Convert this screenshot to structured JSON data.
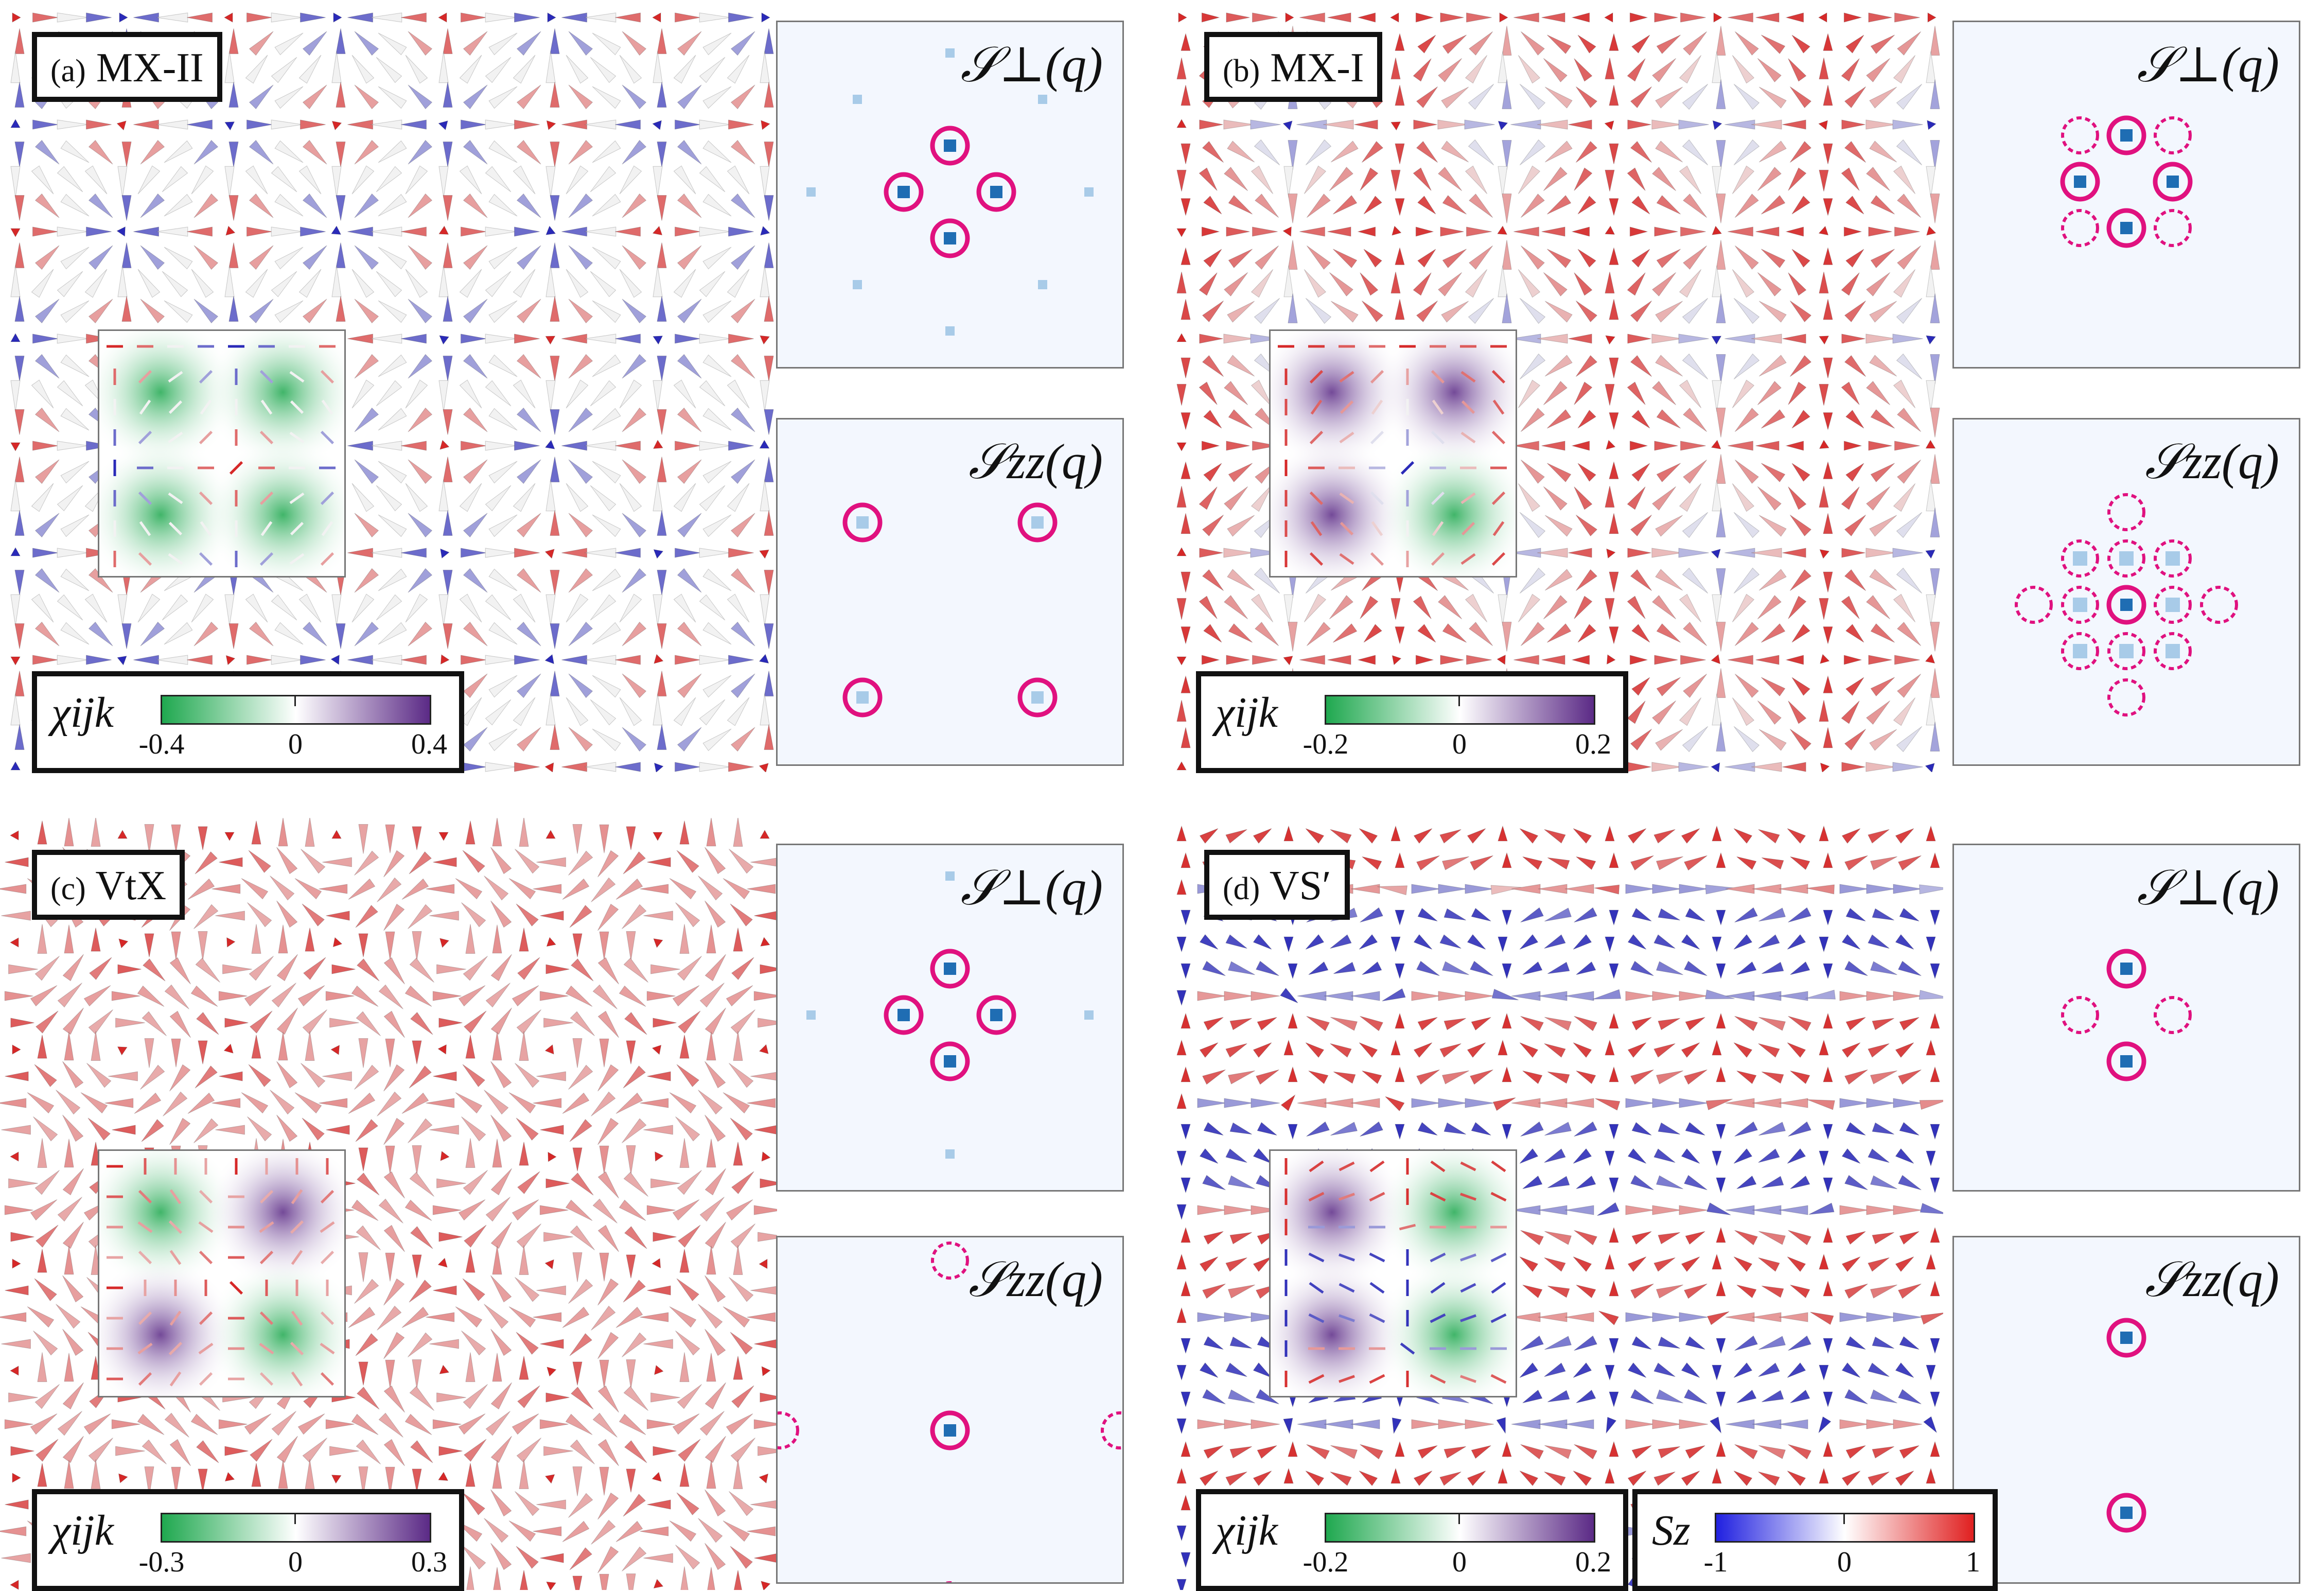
{
  "panels": [
    {
      "id": "a",
      "label": "(a)",
      "name": "MX-II",
      "chi_colorbar": {
        "symbol": "χijk",
        "min": "-0.4",
        "mid": "0",
        "max": "0.4"
      }
    },
    {
      "id": "b",
      "label": "(b)",
      "name": "MX-I",
      "chi_colorbar": {
        "symbol": "χijk",
        "min": "-0.2",
        "mid": "0",
        "max": "0.2"
      }
    },
    {
      "id": "c",
      "label": "(c)",
      "name": "VtX",
      "chi_colorbar": {
        "symbol": "χijk",
        "min": "-0.3",
        "mid": "0",
        "max": "0.3"
      }
    },
    {
      "id": "d",
      "label": "(d)",
      "name": "VS′",
      "chi_colorbar": {
        "symbol": "χijk",
        "min": "-0.2",
        "mid": "0",
        "max": "0.2"
      }
    }
  ],
  "structure_factors": {
    "perp": "𝒮⊥(q)",
    "zz": "𝒮zz(q)"
  },
  "sz_colorbar": {
    "symbol": "Sz",
    "min": "-1",
    "mid": "0",
    "max": "1"
  },
  "colors": {
    "spin_up": "#d62828",
    "spin_down": "#2a2ab8",
    "spin_zero": "#f2f2f2",
    "chi_negative": "#1fa84f",
    "chi_positive": "#5b2a86",
    "peak_marker": "#e0117f",
    "peak_strong": "#1f6db3",
    "peak_weak": "#a8cbe8"
  }
}
